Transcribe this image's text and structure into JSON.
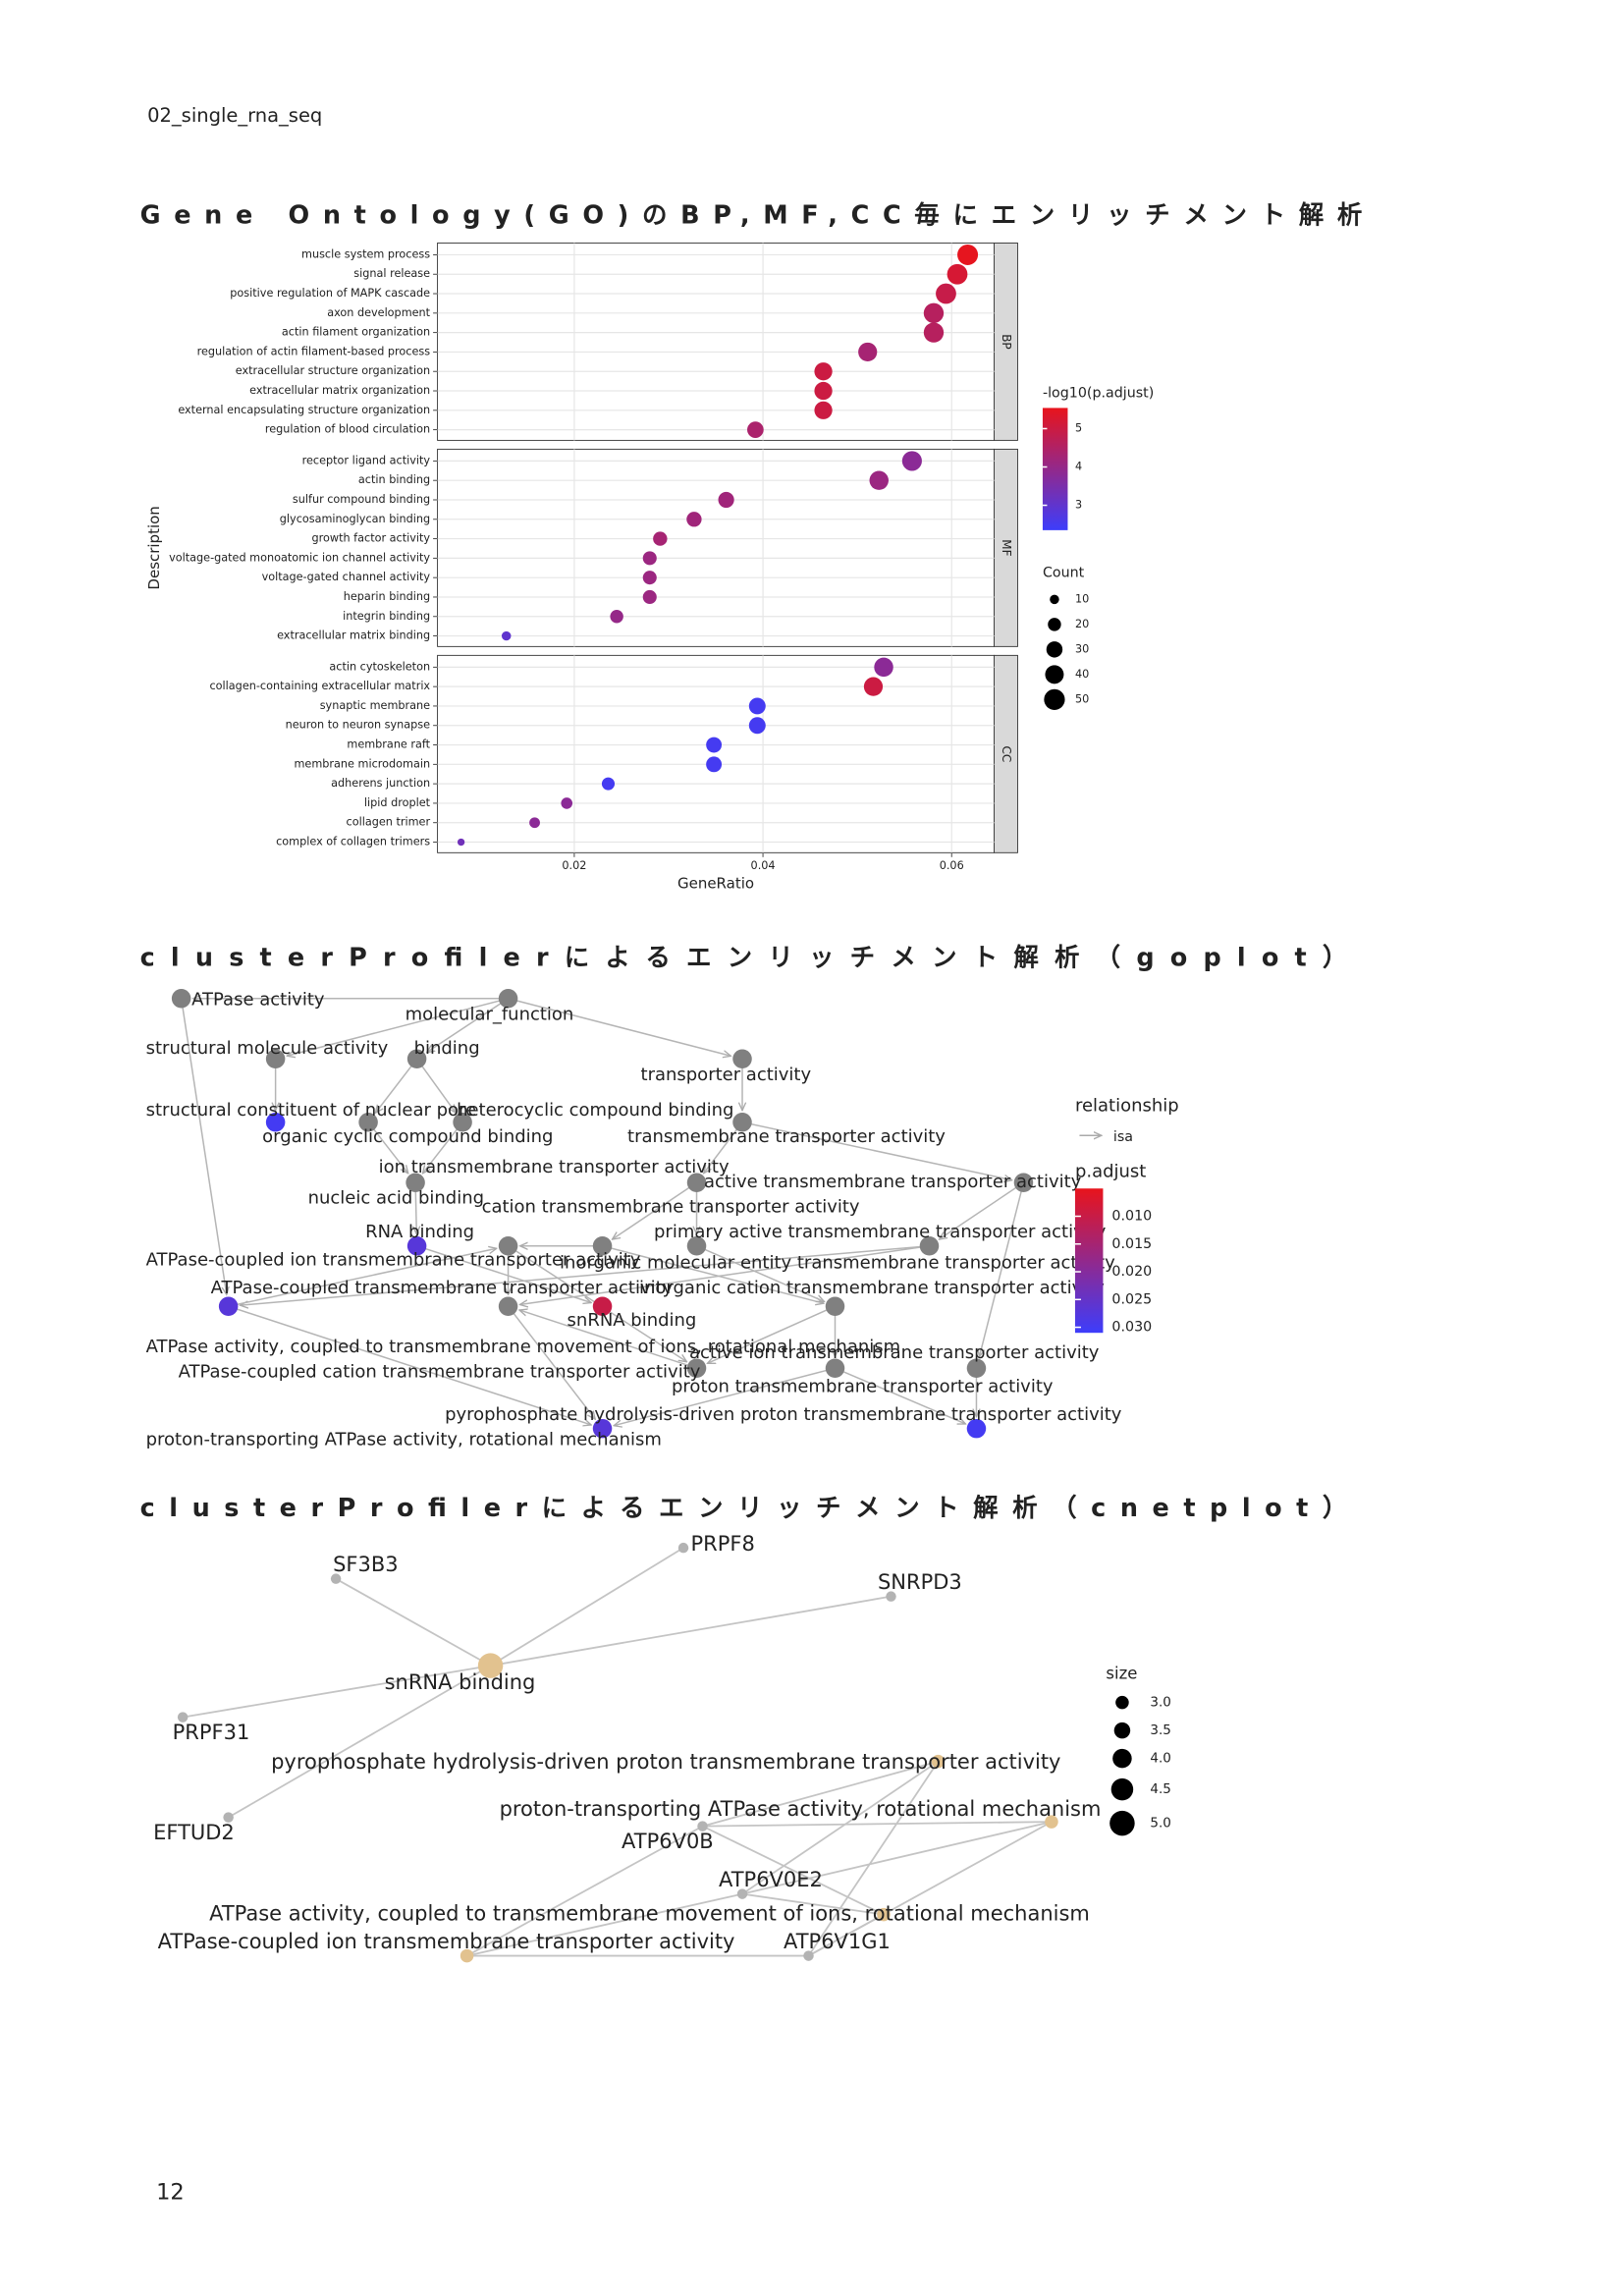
{
  "header": "02_single_rna_seq",
  "page_number": "12",
  "sections": [
    {
      "title": "Gene Ontology(GO)のBP,MF,CC毎にエンリッチメント解析",
      "chart_data": {
        "type": "dotplot",
        "x_label": "GeneRatio",
        "y_label": "Description",
        "xlim": [
          0.0055,
          0.0645
        ],
        "xticks": [
          0.02,
          0.04,
          0.06
        ],
        "grid": true,
        "color_label": "-log10(p.adjust)",
        "color_lim": [
          2.35,
          5.54
        ],
        "color_ticks": [
          3,
          4,
          5
        ],
        "colors": [
          "#3d3dfb",
          "#e8141c"
        ],
        "size_label": "Count",
        "size_ticks": [
          10,
          20,
          30,
          40,
          50
        ],
        "facets": [
          {
            "name": "BP",
            "categories": [
              "muscle system process",
              "signal release",
              "positive regulation of MAPK cascade",
              "axon development",
              "actin filament organization",
              "regulation of actin filament-based process",
              "extracellular structure organization",
              "extracellular matrix organization",
              "external encapsulating structure organization",
              "regulation of blood circulation"
            ],
            "x": [
              0.0617,
              0.0606,
              0.0594,
              0.0581,
              0.0581,
              0.0511,
              0.0464,
              0.0464,
              0.0464,
              0.0392
            ],
            "size": [
              49,
              48,
              48,
              46,
              46,
              41,
              37,
              37,
              37,
              31
            ],
            "color_values": [
              5.5,
              5.2,
              4.9,
              4.6,
              4.6,
              4.3,
              5.0,
              5.0,
              5.0,
              4.4
            ]
          },
          {
            "name": "MF",
            "categories": [
              "receptor ligand activity",
              "actin binding",
              "sulfur compound binding",
              "glycosaminoglycan binding",
              "growth factor activity",
              "voltage-gated monoatomic ion channel activity",
              "voltage-gated channel activity",
              "heparin binding",
              "integrin binding",
              "extracellular matrix binding"
            ],
            "x": [
              0.0558,
              0.0523,
              0.0361,
              0.0327,
              0.0291,
              0.028,
              0.028,
              0.028,
              0.0245,
              0.0128
            ],
            "size": [
              45,
              42,
              29,
              26,
              23,
              22,
              22,
              22,
              20,
              10
            ],
            "color_values": [
              3.8,
              4.1,
              4.2,
              4.2,
              4.3,
              4.1,
              4.1,
              4.1,
              4.0,
              3.0
            ]
          },
          {
            "name": "CC",
            "categories": [
              "actin cytoskeleton",
              "collagen-containing extracellular matrix",
              "synaptic membrane",
              "neuron to neuron synapse",
              "membrane raft",
              "membrane microdomain",
              "adherens junction",
              "lipid droplet",
              "collagen trimer",
              "complex of collagen trimers"
            ],
            "x": [
              0.0528,
              0.0517,
              0.0394,
              0.0394,
              0.0348,
              0.0348,
              0.0236,
              0.0192,
              0.0158,
              0.008
            ],
            "size": [
              42,
              41,
              32,
              32,
              28,
              28,
              19,
              15,
              13,
              6
            ],
            "color_values": [
              3.8,
              5.0,
              2.5,
              2.5,
              2.5,
              2.5,
              2.5,
              3.8,
              3.8,
              3.3
            ]
          }
        ]
      }
    },
    {
      "title": "clusterProfilerによるエンリッチメント解析（goplot）",
      "goplot": {
        "relationship_label": "relationship",
        "relationship_type": "isa",
        "color_label": "p.adjust",
        "color_lim": [
          0.005,
          0.031
        ],
        "color_ticks": [
          {
            "value": 0.01,
            "label": "0.010"
          },
          0.015,
          {
            "value": 0.02,
            "label": "0.020"
          },
          0.025,
          {
            "value": 0.03,
            "label": "0.030"
          }
        ],
        "colors": [
          "#e8141c",
          "#3d3dfb"
        ],
        "node_color": "#808080",
        "nodes": [
          {
            "label": "ATPase activity"
          },
          {
            "label": "molecular_function"
          },
          {
            "label": "structural molecule activity"
          },
          {
            "label": "binding"
          },
          {
            "label": "transporter activity"
          },
          {
            "label": "structural constituent of nuclear pore",
            "p_adjust": 0.03
          },
          {
            "label": "heterocyclic compound binding"
          },
          {
            "label": "organic cyclic compound binding"
          },
          {
            "label": "transmembrane transporter activity"
          },
          {
            "label": "nucleic acid binding"
          },
          {
            "label": "ion transmembrane transporter activity"
          },
          {
            "label": "active transmembrane transporter activity"
          },
          {
            "label": "RNA binding",
            "p_adjust": 0.027
          },
          {
            "label": "cation transmembrane transporter activity"
          },
          {
            "label": "ATPase-coupled ion transmembrane transporter activity"
          },
          {
            "label": "primary active transmembrane transporter activity"
          },
          {
            "label": "inorganic molecular entity transmembrane transporter activity"
          },
          {
            "label": "ATPase-coupled transmembrane transporter activity",
            "p_adjust": 0.027
          },
          {
            "label": "ATPase activity, coupled to transmembrane movement of ions, rotational mechanism"
          },
          {
            "label": "snRNA binding",
            "p_adjust": 0.01
          },
          {
            "label": "inorganic cation transmembrane transporter activity"
          },
          {
            "label": "ATPase-coupled cation transmembrane transporter activity"
          },
          {
            "label": "active ion transmembrane transporter activity"
          },
          {
            "label": "proton transmembrane transporter activity"
          },
          {
            "label": "proton-transporting ATPase activity, rotational mechanism",
            "p_adjust": 0.027
          },
          {
            "label": "pyrophosphate hydrolysis-driven proton transmembrane transporter activity",
            "p_adjust": 0.03
          }
        ]
      }
    },
    {
      "title": "clusterProfilerによるエンリッチメント解析（cnetplot）",
      "cnetplot": {
        "size_label": "size",
        "size_ticks": [
          {
            "value": 3,
            "label": "3.0"
          },
          3.5,
          {
            "value": 4,
            "label": "4.0"
          },
          4.5,
          {
            "value": 5,
            "label": "5.0"
          }
        ],
        "category_color": "#e2c28f",
        "gene_color": "#b3b3b3",
        "categories": [
          {
            "label": "snRNA binding",
            "size": 5
          },
          {
            "label": "pyrophosphate hydrolysis-driven proton transmembrane transporter activity",
            "size": 3
          },
          {
            "label": "proton-transporting ATPase activity, rotational mechanism",
            "size": 3
          },
          {
            "label": "ATPase activity, coupled to transmembrane movement of ions, rotational mechanism",
            "size": 3
          },
          {
            "label": "ATPase-coupled ion transmembrane transporter activity",
            "size": 3
          }
        ],
        "genes": [
          "SF3B3",
          "PRPF8",
          "SNRPD3",
          "PRPF31",
          "EFTUD2",
          "ATP6V0B",
          "ATP6V0E2",
          "ATP6V1G1"
        ]
      }
    }
  ]
}
